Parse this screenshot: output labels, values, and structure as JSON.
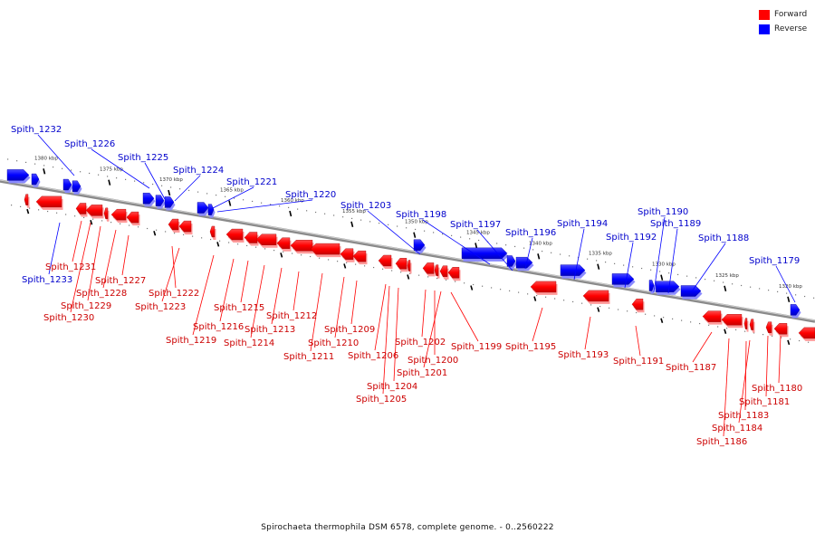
{
  "legend": {
    "forward_label": "Forward",
    "reverse_label": "Reverse",
    "forward_color": "#ff0000",
    "reverse_color": "#0000ff"
  },
  "caption": "Spirochaeta thermophila DSM 6578, complete genome. - 0..2560222",
  "ticks": [
    "1380 kbp",
    "1375 kbp",
    "1370 kbp",
    "1365 kbp",
    "1360 kbp",
    "1355 kbp",
    "1350 kbp",
    "1345 kbp",
    "1340 kbp",
    "1335 kbp",
    "1330 kbp",
    "1325 kbp",
    "1320 kbp"
  ],
  "reverse_labels": [
    "Spith_1232",
    "Spith_1226",
    "Spith_1225",
    "Spith_1224",
    "Spith_1221",
    "Spith_1220",
    "Spith_1203",
    "Spith_1198",
    "Spith_1197",
    "Spith_1196",
    "Spith_1194",
    "Spith_1192",
    "Spith_1190",
    "Spith_1189",
    "Spith_1188",
    "Spith_1179",
    "Spith_1233"
  ],
  "forward_labels": [
    "Spith_1231",
    "Spith_1227",
    "Spith_1228",
    "Spith_1229",
    "Spith_1230",
    "Spith_1222",
    "Spith_1223",
    "Spith_1219",
    "Spith_1216",
    "Spith_1215",
    "Spith_1214",
    "Spith_1213",
    "Spith_1212",
    "Spith_1211",
    "Spith_1210",
    "Spith_1209",
    "Spith_1206",
    "Spith_1204",
    "Spith_1205",
    "Spith_1202",
    "Spith_1201",
    "Spith_1200",
    "Spith_1199",
    "Spith_1195",
    "Spith_1193",
    "Spith_1191",
    "Spith_1187",
    "Spith_1180",
    "Spith_1181",
    "Spith_1183",
    "Spith_1184",
    "Spith_1186"
  ]
}
